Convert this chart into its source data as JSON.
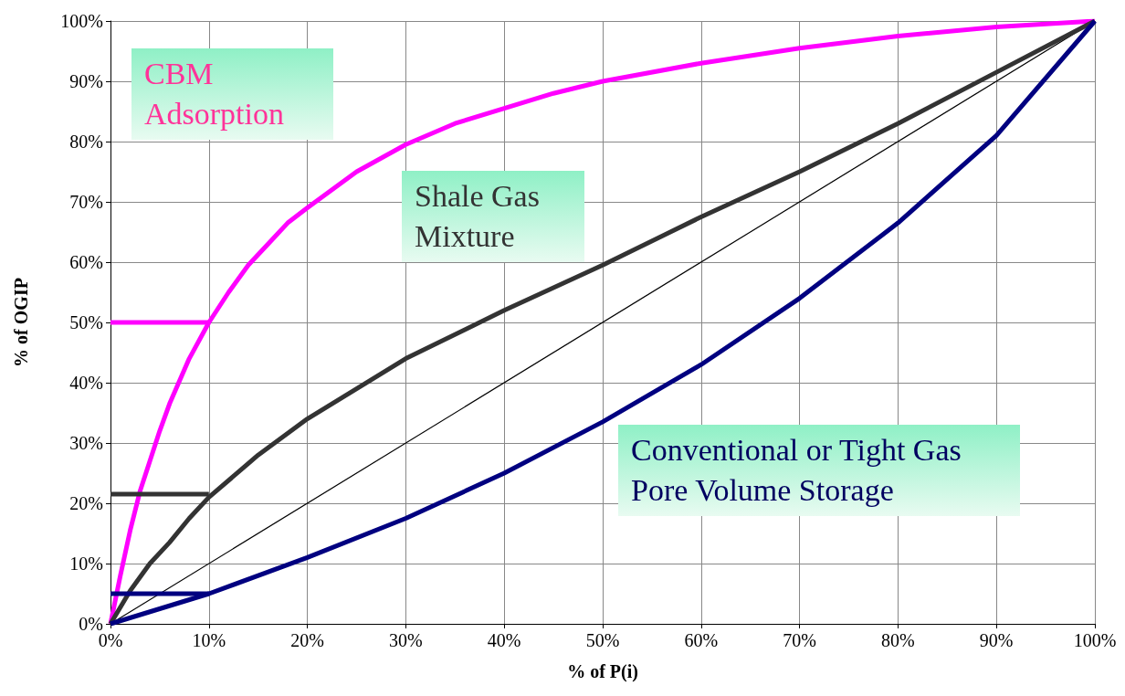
{
  "chart_data": {
    "type": "line",
    "xlabel": "% of P(i)",
    "ylabel": "% of OGIP",
    "xlim": [
      0,
      100
    ],
    "ylim": [
      0,
      100
    ],
    "xticks": [
      {
        "value": 0,
        "label": "0%"
      },
      {
        "value": 10,
        "label": "10%"
      },
      {
        "value": 20,
        "label": "20%"
      },
      {
        "value": 30,
        "label": "30%"
      },
      {
        "value": 40,
        "label": "40%"
      },
      {
        "value": 50,
        "label": "50%"
      },
      {
        "value": 60,
        "label": "60%"
      },
      {
        "value": 70,
        "label": "70%"
      },
      {
        "value": 80,
        "label": "80%"
      },
      {
        "value": 90,
        "label": "90%"
      },
      {
        "value": 100,
        "label": "100%"
      }
    ],
    "yticks": [
      {
        "value": 0,
        "label": "0%"
      },
      {
        "value": 10,
        "label": "10%"
      },
      {
        "value": 20,
        "label": "20%"
      },
      {
        "value": 30,
        "label": "30%"
      },
      {
        "value": 40,
        "label": "40%"
      },
      {
        "value": 50,
        "label": "50%"
      },
      {
        "value": 60,
        "label": "60%"
      },
      {
        "value": 70,
        "label": "70%"
      },
      {
        "value": 80,
        "label": "80%"
      },
      {
        "value": 90,
        "label": "90%"
      },
      {
        "value": 100,
        "label": "100%"
      }
    ],
    "grid": true,
    "marker": "none",
    "annotations": [
      "CBM Adsorption",
      "Shale Gas Mixture",
      "Conventional or Tight Gas Pore Volume Storage"
    ],
    "series": [
      {
        "color": "#000000",
        "x": [
          0,
          100
        ],
        "values": [
          0,
          100
        ]
      },
      {
        "color": "#ff00ff",
        "x": [
          0,
          1,
          2,
          3,
          4,
          5,
          6,
          8,
          10,
          12,
          14,
          16,
          18,
          20,
          25,
          30,
          35,
          40,
          45,
          50,
          60,
          70,
          80,
          90,
          100
        ],
        "values": [
          0,
          8,
          15.5,
          22,
          27,
          32,
          36.5,
          44,
          50,
          55,
          59.5,
          63,
          66.5,
          69,
          75,
          79.5,
          83,
          85.5,
          88,
          90,
          93,
          95.5,
          97.5,
          99,
          100
        ]
      },
      {
        "color": "#333333",
        "x": [
          0,
          2,
          4,
          6,
          8,
          10,
          15,
          20,
          30,
          40,
          50,
          60,
          70,
          80,
          90,
          100
        ],
        "values": [
          0,
          5.5,
          10,
          13.5,
          17.5,
          21,
          28,
          34,
          44,
          52,
          59.5,
          67.5,
          75,
          83,
          91.5,
          100
        ]
      },
      {
        "color": "#000080",
        "x": [
          0,
          10,
          20,
          30,
          40,
          50,
          60,
          70,
          80,
          90,
          100
        ],
        "values": [
          0,
          5,
          11,
          17.5,
          25,
          33.5,
          43,
          54,
          66.5,
          81,
          100
        ]
      },
      {
        "color": "#ff00ff",
        "x": [
          0,
          10
        ],
        "values": [
          50,
          50
        ]
      },
      {
        "color": "#333333",
        "x": [
          0,
          10
        ],
        "values": [
          21.5,
          21.5
        ]
      },
      {
        "color": "#000080",
        "x": [
          0,
          10
        ],
        "values": [
          5,
          5
        ]
      }
    ]
  }
}
